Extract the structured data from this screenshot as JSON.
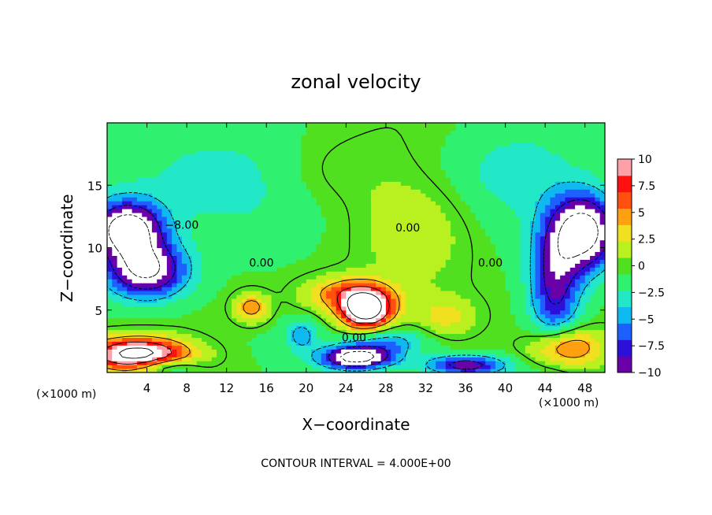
{
  "chart_data": {
    "type": "heatmap",
    "title": "zonal velocity",
    "xlabel": "X−coordinate",
    "ylabel": "Z−coordinate",
    "x_unit": "(×1000 m)",
    "z_unit": "(×1000 m)",
    "footer": "CONTOUR INTERVAL = 4.000E+00",
    "xlim": [
      0,
      50
    ],
    "ylim": [
      0,
      20
    ],
    "x_ticks": [
      4,
      8,
      12,
      16,
      20,
      24,
      28,
      32,
      36,
      40,
      44,
      48
    ],
    "y_ticks": [
      5,
      10,
      15
    ],
    "colorbar": {
      "min": -10,
      "max": 10,
      "ticks": [
        "10",
        "7.5",
        "5",
        "2.5",
        "0",
        "−2.5",
        "−5",
        "−7.5",
        "−10"
      ],
      "colors": [
        "#6a00a8",
        "#2a10d8",
        "#1e60ff",
        "#10b8f0",
        "#22e8c8",
        "#30f070",
        "#50e020",
        "#b8f020",
        "#f0e020",
        "#ffa010",
        "#ff5010",
        "#ff1010",
        "#ffa0a8"
      ]
    },
    "contour_labels": [
      {
        "text": "−8.00",
        "x": 7.5,
        "z": 11.5
      },
      {
        "text": "0.00",
        "x": 15.5,
        "z": 8.5
      },
      {
        "text": "0.00",
        "x": 24.8,
        "z": 2.5
      },
      {
        "text": "0.00",
        "x": 30.2,
        "z": 11.3
      },
      {
        "text": "0.00",
        "x": 38.5,
        "z": 8.5
      }
    ],
    "features": [
      {
        "kind": "max",
        "x": 26,
        "z": 5,
        "value": 10
      },
      {
        "kind": "min",
        "x": 2,
        "z": 11.5,
        "value": -10
      },
      {
        "kind": "min",
        "x": 47.5,
        "z": 11.5,
        "value": -10
      },
      {
        "kind": "min",
        "x": 4,
        "z": 8.5,
        "value": -10
      },
      {
        "kind": "max",
        "x": 3,
        "z": 1.5,
        "value": 10
      },
      {
        "kind": "max",
        "x": 46,
        "z": 2,
        "value": 8
      },
      {
        "kind": "min",
        "x": 25,
        "z": 1.2,
        "value": -10
      },
      {
        "kind": "min",
        "x": 36,
        "z": 0.6,
        "value": -9
      }
    ]
  }
}
